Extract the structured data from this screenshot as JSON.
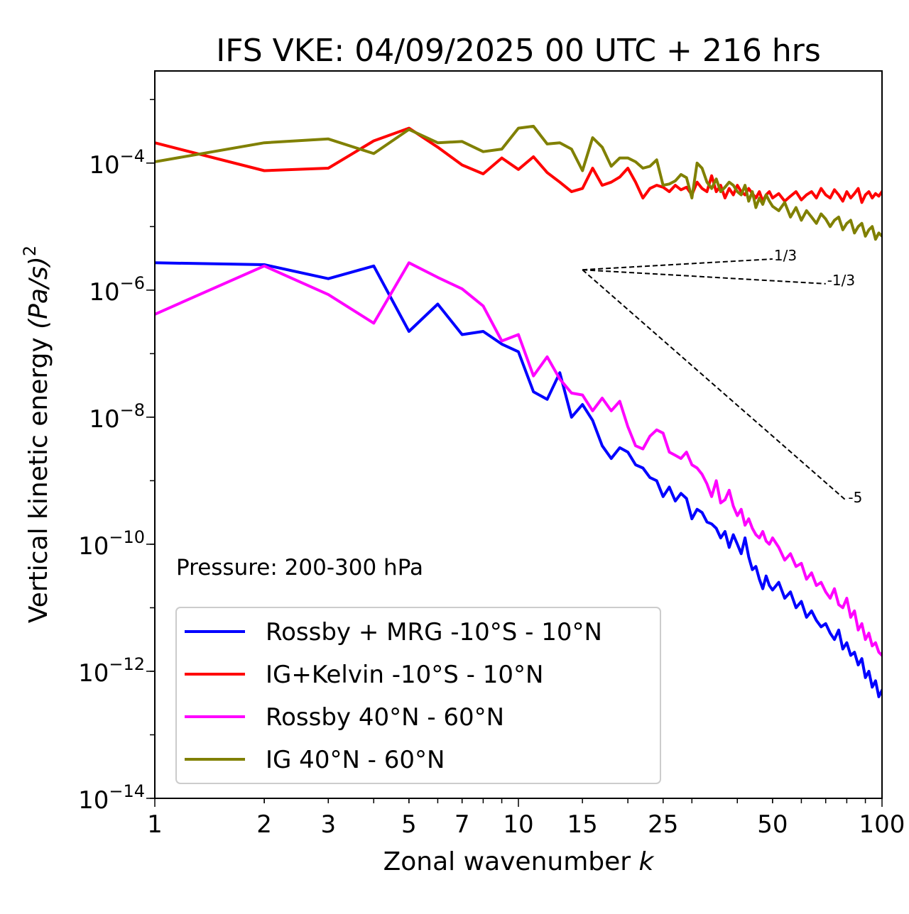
{
  "chart_data": {
    "type": "line",
    "title": "IFS VKE: 04/09/2025 00 UTC + 216 hrs",
    "xlabel": "Zonal wavenumber",
    "xlabel_var": "k",
    "ylabel_main": "Vertical kinetic energy",
    "ylabel_unit_base": "(Pa/s)",
    "ylabel_unit_exp": "2",
    "xscale": "log",
    "yscale": "log",
    "xlim": [
      1,
      100
    ],
    "ylim_exp": [
      -14,
      -2.55
    ],
    "x_ticks": [
      1,
      2,
      3,
      5,
      7,
      10,
      15,
      25,
      50,
      100
    ],
    "x_tick_labels": [
      "1",
      "2",
      "3",
      "5",
      "7",
      "10",
      "15",
      "25",
      "50",
      "100"
    ],
    "y_ticks_exp": [
      -4,
      -6,
      -8,
      -10,
      -12,
      -14
    ],
    "y_tick_base": "10",
    "y_tick_exp_labels": [
      "−4",
      "−6",
      "−8",
      "−10",
      "−12",
      "−14"
    ],
    "annotation": "Pressure: 200-300 hPa",
    "legend_position": "lower-left",
    "series": [
      {
        "name": "Rossby + MRG -10°S - 10°N",
        "color": "#0000ff",
        "x": [
          1,
          2,
          3,
          4,
          5,
          6,
          7,
          8,
          9,
          10,
          11,
          12,
          13,
          14,
          15,
          16,
          17,
          18,
          19,
          20,
          21,
          22,
          23,
          24,
          25,
          26,
          27,
          28,
          29,
          30,
          31,
          32,
          33,
          34,
          35,
          36,
          37,
          38,
          39,
          40,
          41,
          42,
          43,
          44,
          45,
          46,
          47,
          48,
          49,
          50,
          52,
          54,
          56,
          58,
          60,
          62,
          64,
          66,
          68,
          70,
          72,
          74,
          76,
          78,
          80,
          82,
          84,
          86,
          88,
          90,
          92,
          94,
          96,
          98,
          100
        ],
        "log10_values": [
          -5.57,
          -5.6,
          -5.82,
          -5.62,
          -6.65,
          -6.22,
          -6.7,
          -6.65,
          -6.85,
          -6.97,
          -7.6,
          -7.72,
          -7.3,
          -8.0,
          -7.8,
          -8.05,
          -8.45,
          -8.65,
          -8.48,
          -8.55,
          -8.75,
          -8.8,
          -8.95,
          -9.0,
          -9.25,
          -9.1,
          -9.32,
          -9.2,
          -9.28,
          -9.6,
          -9.45,
          -9.5,
          -9.65,
          -9.68,
          -9.75,
          -9.9,
          -9.8,
          -10.05,
          -9.85,
          -10.0,
          -10.15,
          -9.9,
          -10.2,
          -10.4,
          -10.35,
          -10.55,
          -10.7,
          -10.5,
          -10.65,
          -10.72,
          -10.6,
          -10.85,
          -10.75,
          -11.0,
          -10.9,
          -11.15,
          -11.05,
          -11.2,
          -11.3,
          -11.25,
          -11.4,
          -11.5,
          -11.35,
          -11.65,
          -11.55,
          -11.75,
          -11.7,
          -11.9,
          -11.8,
          -12.1,
          -12.0,
          -12.25,
          -12.15,
          -12.4,
          -12.3
        ]
      },
      {
        "name": "IG+Kelvin -10°S - 10°N",
        "color": "#ff0000",
        "x": [
          1,
          2,
          3,
          4,
          5,
          6,
          7,
          8,
          9,
          10,
          11,
          12,
          13,
          14,
          15,
          16,
          17,
          18,
          19,
          20,
          21,
          22,
          23,
          24,
          25,
          26,
          27,
          28,
          29,
          30,
          31,
          32,
          33,
          34,
          35,
          36,
          37,
          38,
          39,
          40,
          41,
          42,
          43,
          44,
          45,
          46,
          47,
          48,
          49,
          50,
          52,
          54,
          56,
          58,
          60,
          62,
          64,
          66,
          68,
          70,
          72,
          74,
          76,
          78,
          80,
          82,
          84,
          86,
          88,
          90,
          92,
          94,
          96,
          98,
          100
        ],
        "log10_values": [
          -3.68,
          -4.12,
          -4.08,
          -3.65,
          -3.45,
          -3.75,
          -4.03,
          -4.17,
          -3.92,
          -4.1,
          -3.9,
          -4.15,
          -4.3,
          -4.45,
          -4.4,
          -4.08,
          -4.35,
          -4.3,
          -4.22,
          -4.08,
          -4.3,
          -4.55,
          -4.4,
          -4.35,
          -4.38,
          -4.45,
          -4.35,
          -4.42,
          -4.38,
          -4.5,
          -4.3,
          -4.4,
          -4.45,
          -4.2,
          -4.45,
          -4.35,
          -4.55,
          -4.4,
          -4.5,
          -4.35,
          -4.45,
          -4.5,
          -4.4,
          -4.48,
          -4.55,
          -4.45,
          -4.6,
          -4.5,
          -4.45,
          -4.55,
          -4.48,
          -4.6,
          -4.52,
          -4.45,
          -4.58,
          -4.5,
          -4.45,
          -4.55,
          -4.4,
          -4.5,
          -4.55,
          -4.42,
          -4.5,
          -4.6,
          -4.45,
          -4.55,
          -4.48,
          -4.4,
          -4.62,
          -4.5,
          -4.45,
          -4.55,
          -4.48,
          -4.52,
          -4.45
        ]
      },
      {
        "name": "Rossby 40°N - 60°N",
        "color": "#ff00ff",
        "x": [
          1,
          2,
          3,
          4,
          5,
          6,
          7,
          8,
          9,
          10,
          11,
          12,
          13,
          14,
          15,
          16,
          17,
          18,
          19,
          20,
          21,
          22,
          23,
          24,
          25,
          26,
          27,
          28,
          29,
          30,
          31,
          32,
          33,
          34,
          35,
          36,
          37,
          38,
          39,
          40,
          41,
          42,
          43,
          44,
          45,
          46,
          47,
          48,
          49,
          50,
          52,
          54,
          56,
          58,
          60,
          62,
          64,
          66,
          68,
          70,
          72,
          74,
          76,
          78,
          80,
          82,
          84,
          86,
          88,
          90,
          92,
          94,
          96,
          98,
          100
        ],
        "log10_values": [
          -6.38,
          -5.62,
          -6.07,
          -6.52,
          -5.57,
          -5.8,
          -5.98,
          -6.25,
          -6.8,
          -6.7,
          -7.35,
          -7.05,
          -7.4,
          -7.62,
          -7.65,
          -7.9,
          -7.7,
          -7.9,
          -7.75,
          -8.15,
          -8.45,
          -8.5,
          -8.3,
          -8.2,
          -8.25,
          -8.55,
          -8.6,
          -8.65,
          -8.55,
          -8.75,
          -8.8,
          -8.9,
          -9.05,
          -9.25,
          -9.0,
          -9.35,
          -9.3,
          -9.15,
          -9.4,
          -9.55,
          -9.45,
          -9.7,
          -9.6,
          -9.75,
          -9.85,
          -9.9,
          -9.8,
          -9.95,
          -10.0,
          -9.9,
          -10.05,
          -10.25,
          -10.15,
          -10.35,
          -10.3,
          -10.55,
          -10.45,
          -10.65,
          -10.6,
          -10.75,
          -10.85,
          -10.7,
          -10.95,
          -11.0,
          -10.85,
          -11.15,
          -11.05,
          -11.35,
          -11.25,
          -11.5,
          -11.4,
          -11.6,
          -11.55,
          -11.7,
          -11.75
        ]
      },
      {
        "name": "IG 40°N - 60°N",
        "color": "#808000",
        "x": [
          1,
          2,
          3,
          4,
          5,
          6,
          7,
          8,
          9,
          10,
          11,
          12,
          13,
          14,
          15,
          16,
          17,
          18,
          19,
          20,
          21,
          22,
          23,
          24,
          25,
          26,
          27,
          28,
          29,
          30,
          31,
          32,
          33,
          34,
          35,
          36,
          37,
          38,
          39,
          40,
          41,
          42,
          43,
          44,
          45,
          46,
          47,
          48,
          49,
          50,
          52,
          54,
          56,
          58,
          60,
          62,
          64,
          66,
          68,
          70,
          72,
          74,
          76,
          78,
          80,
          82,
          84,
          86,
          88,
          90,
          92,
          94,
          96,
          98,
          100
        ],
        "log10_values": [
          -3.98,
          -3.68,
          -3.62,
          -3.85,
          -3.47,
          -3.68,
          -3.66,
          -3.82,
          -3.78,
          -3.45,
          -3.42,
          -3.7,
          -3.68,
          -3.78,
          -4.12,
          -3.6,
          -3.75,
          -4.05,
          -3.92,
          -3.92,
          -3.98,
          -4.08,
          -4.05,
          -3.95,
          -4.35,
          -4.33,
          -4.28,
          -4.18,
          -4.23,
          -4.55,
          -4.0,
          -4.08,
          -4.3,
          -4.4,
          -4.25,
          -4.45,
          -4.38,
          -4.3,
          -4.35,
          -4.45,
          -4.5,
          -4.35,
          -4.6,
          -4.45,
          -4.7,
          -4.55,
          -4.65,
          -4.5,
          -4.6,
          -4.68,
          -4.75,
          -4.62,
          -4.85,
          -4.7,
          -4.9,
          -4.75,
          -4.85,
          -4.95,
          -4.8,
          -4.88,
          -5.0,
          -4.9,
          -4.85,
          -5.05,
          -4.95,
          -4.9,
          -5.1,
          -5.0,
          -4.95,
          -5.15,
          -5.05,
          -5.0,
          -5.2,
          -5.1,
          -5.15
        ]
      }
    ],
    "reference_lines": [
      {
        "label": "1/3",
        "x": [
          15,
          50
        ],
        "log10_values": [
          -5.68,
          -5.51
        ]
      },
      {
        "label": "-1/3",
        "x": [
          15,
          70
        ],
        "log10_values": [
          -5.68,
          -5.9
        ]
      },
      {
        "label": "-5",
        "x": [
          15,
          80
        ],
        "log10_values": [
          -5.68,
          -9.32
        ]
      }
    ]
  }
}
